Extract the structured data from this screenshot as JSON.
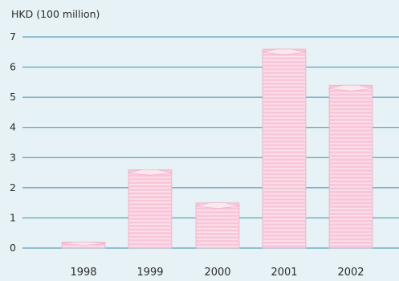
{
  "chart_data": {
    "type": "bar",
    "ylabel": "HKD (100 million)",
    "categories": [
      "1998",
      "1999",
      "2000",
      "2001",
      "2002"
    ],
    "values": [
      0.2,
      2.6,
      1.5,
      6.6,
      5.4
    ],
    "ylim": [
      0,
      7
    ],
    "yticks": [
      "0",
      "1",
      "2",
      "3",
      "4",
      "5",
      "6",
      "7"
    ],
    "grid": true,
    "colors": {
      "background": "#e6f2f5",
      "gridline": "#3f8fae",
      "bar_fill": "#f9c6d9",
      "bar_stripe": "#fbe3ec",
      "bar_top": "#fce7ef",
      "bar_edge": "#efa9c4"
    }
  }
}
